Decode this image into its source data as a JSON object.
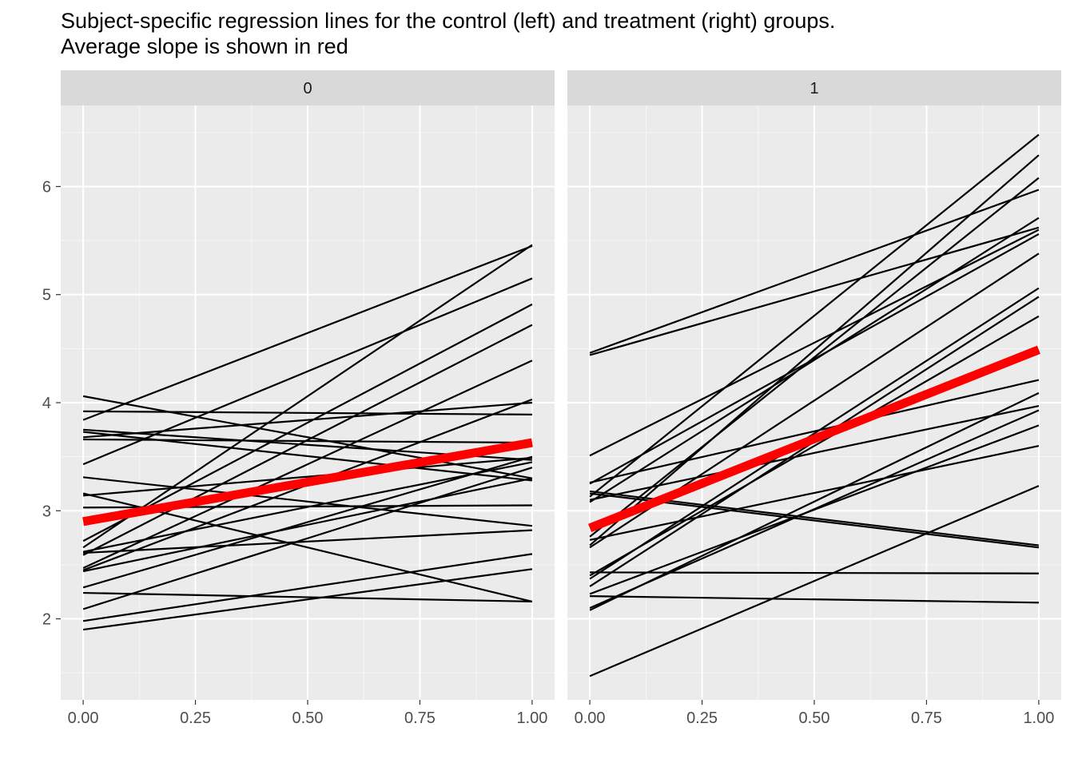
{
  "chart_data": {
    "type": "line",
    "title": "Subject-specific regression lines for the control (left) and treatment (right) groups.",
    "subtitle": "Average slope is shown in red",
    "xlabel": "",
    "ylabel": "",
    "xlim": [
      -0.05,
      1.05
    ],
    "ylim": [
      1.25,
      6.75
    ],
    "x_ticks": [
      0,
      0.25,
      0.5,
      0.75,
      1
    ],
    "x_tick_labels": [
      "0.00",
      "0.25",
      "0.50",
      "0.75",
      "1.00"
    ],
    "y_ticks": [
      2,
      3,
      4,
      5,
      6
    ],
    "y_tick_labels": [
      "2",
      "3",
      "4",
      "5",
      "6"
    ],
    "grid": true,
    "legend": "none",
    "colors": {
      "panel_background": "#ebebeb",
      "strip_background": "#d9d9d9",
      "grid_major": "#ffffff",
      "subject_line": "#000000",
      "average_line": "#ff0000"
    },
    "panels": [
      {
        "label": "0",
        "subject_lines": [
          {
            "x": [
              0,
              1
            ],
            "y": [
              4.06,
              3.3
            ]
          },
          {
            "x": [
              0,
              1
            ],
            "y": [
              3.92,
              3.89
            ]
          },
          {
            "x": [
              0,
              1
            ],
            "y": [
              3.84,
              5.45
            ]
          },
          {
            "x": [
              0,
              1
            ],
            "y": [
              3.75,
              3.47
            ]
          },
          {
            "x": [
              0,
              1
            ],
            "y": [
              3.73,
              3.28
            ]
          },
          {
            "x": [
              0,
              1
            ],
            "y": [
              3.68,
              4.0
            ]
          },
          {
            "x": [
              0,
              1
            ],
            "y": [
              3.66,
              3.63
            ]
          },
          {
            "x": [
              0,
              1
            ],
            "y": [
              3.43,
              5.15
            ]
          },
          {
            "x": [
              0,
              1
            ],
            "y": [
              3.31,
              2.86
            ]
          },
          {
            "x": [
              0,
              1
            ],
            "y": [
              3.16,
              2.16
            ]
          },
          {
            "x": [
              0,
              1
            ],
            "y": [
              3.14,
              3.49
            ]
          },
          {
            "x": [
              0,
              1
            ],
            "y": [
              3.03,
              3.05
            ]
          },
          {
            "x": [
              0,
              1
            ],
            "y": [
              2.72,
              4.91
            ]
          },
          {
            "x": [
              0,
              1
            ],
            "y": [
              2.66,
              5.46
            ]
          },
          {
            "x": [
              0,
              1
            ],
            "y": [
              2.62,
              3.45
            ]
          },
          {
            "x": [
              0,
              1
            ],
            "y": [
              2.59,
              4.72
            ]
          },
          {
            "x": [
              0,
              1
            ],
            "y": [
              2.61,
              2.82
            ]
          },
          {
            "x": [
              0,
              1
            ],
            "y": [
              2.47,
              4.39
            ]
          },
          {
            "x": [
              0,
              1
            ],
            "y": [
              2.45,
              4.03
            ]
          },
          {
            "x": [
              0,
              1
            ],
            "y": [
              2.44,
              3.3
            ]
          },
          {
            "x": [
              0,
              1
            ],
            "y": [
              2.29,
              3.5
            ]
          },
          {
            "x": [
              0,
              1
            ],
            "y": [
              2.24,
              2.16
            ]
          },
          {
            "x": [
              0,
              1
            ],
            "y": [
              2.09,
              3.4
            ]
          },
          {
            "x": [
              0,
              1
            ],
            "y": [
              1.98,
              2.6
            ]
          },
          {
            "x": [
              0,
              1
            ],
            "y": [
              1.9,
              2.46
            ]
          }
        ],
        "average_line": {
          "x": [
            0,
            1
          ],
          "y": [
            2.9,
            3.63
          ]
        }
      },
      {
        "label": "1",
        "subject_lines": [
          {
            "x": [
              0,
              1
            ],
            "y": [
              4.46,
              5.97
            ]
          },
          {
            "x": [
              0,
              1
            ],
            "y": [
              4.44,
              5.62
            ]
          },
          {
            "x": [
              0,
              1
            ],
            "y": [
              3.51,
              5.6
            ]
          },
          {
            "x": [
              0,
              1
            ],
            "y": [
              3.26,
              4.21
            ]
          },
          {
            "x": [
              0,
              1
            ],
            "y": [
              3.25,
              5.56
            ]
          },
          {
            "x": [
              0,
              1
            ],
            "y": [
              3.18,
              2.68
            ]
          },
          {
            "x": [
              0,
              1
            ],
            "y": [
              3.16,
              2.66
            ]
          },
          {
            "x": [
              0,
              1
            ],
            "y": [
              3.13,
              6.48
            ]
          },
          {
            "x": [
              0,
              1
            ],
            "y": [
              3.1,
              3.97
            ]
          },
          {
            "x": [
              0,
              1
            ],
            "y": [
              3.08,
              5.71
            ]
          },
          {
            "x": [
              0,
              1
            ],
            "y": [
              2.76,
              6.08
            ]
          },
          {
            "x": [
              0,
              1
            ],
            "y": [
              2.73,
              3.6
            ]
          },
          {
            "x": [
              0,
              1
            ],
            "y": [
              2.68,
              6.29
            ]
          },
          {
            "x": [
              0,
              1
            ],
            "y": [
              2.66,
              5.38
            ]
          },
          {
            "x": [
              0,
              1
            ],
            "y": [
              2.43,
              2.42
            ]
          },
          {
            "x": [
              0,
              1
            ],
            "y": [
              2.4,
              4.8
            ]
          },
          {
            "x": [
              0,
              1
            ],
            "y": [
              2.37,
              5.06
            ]
          },
          {
            "x": [
              0,
              1
            ],
            "y": [
              2.3,
              4.98
            ]
          },
          {
            "x": [
              0,
              1
            ],
            "y": [
              2.23,
              3.79
            ]
          },
          {
            "x": [
              0,
              1
            ],
            "y": [
              2.21,
              2.15
            ]
          },
          {
            "x": [
              0,
              1
            ],
            "y": [
              2.1,
              3.93
            ]
          },
          {
            "x": [
              0,
              1
            ],
            "y": [
              2.08,
              4.09
            ]
          },
          {
            "x": [
              0,
              1
            ],
            "y": [
              1.47,
              3.23
            ]
          }
        ],
        "average_line": {
          "x": [
            0,
            1
          ],
          "y": [
            2.84,
            4.49
          ]
        }
      }
    ]
  }
}
